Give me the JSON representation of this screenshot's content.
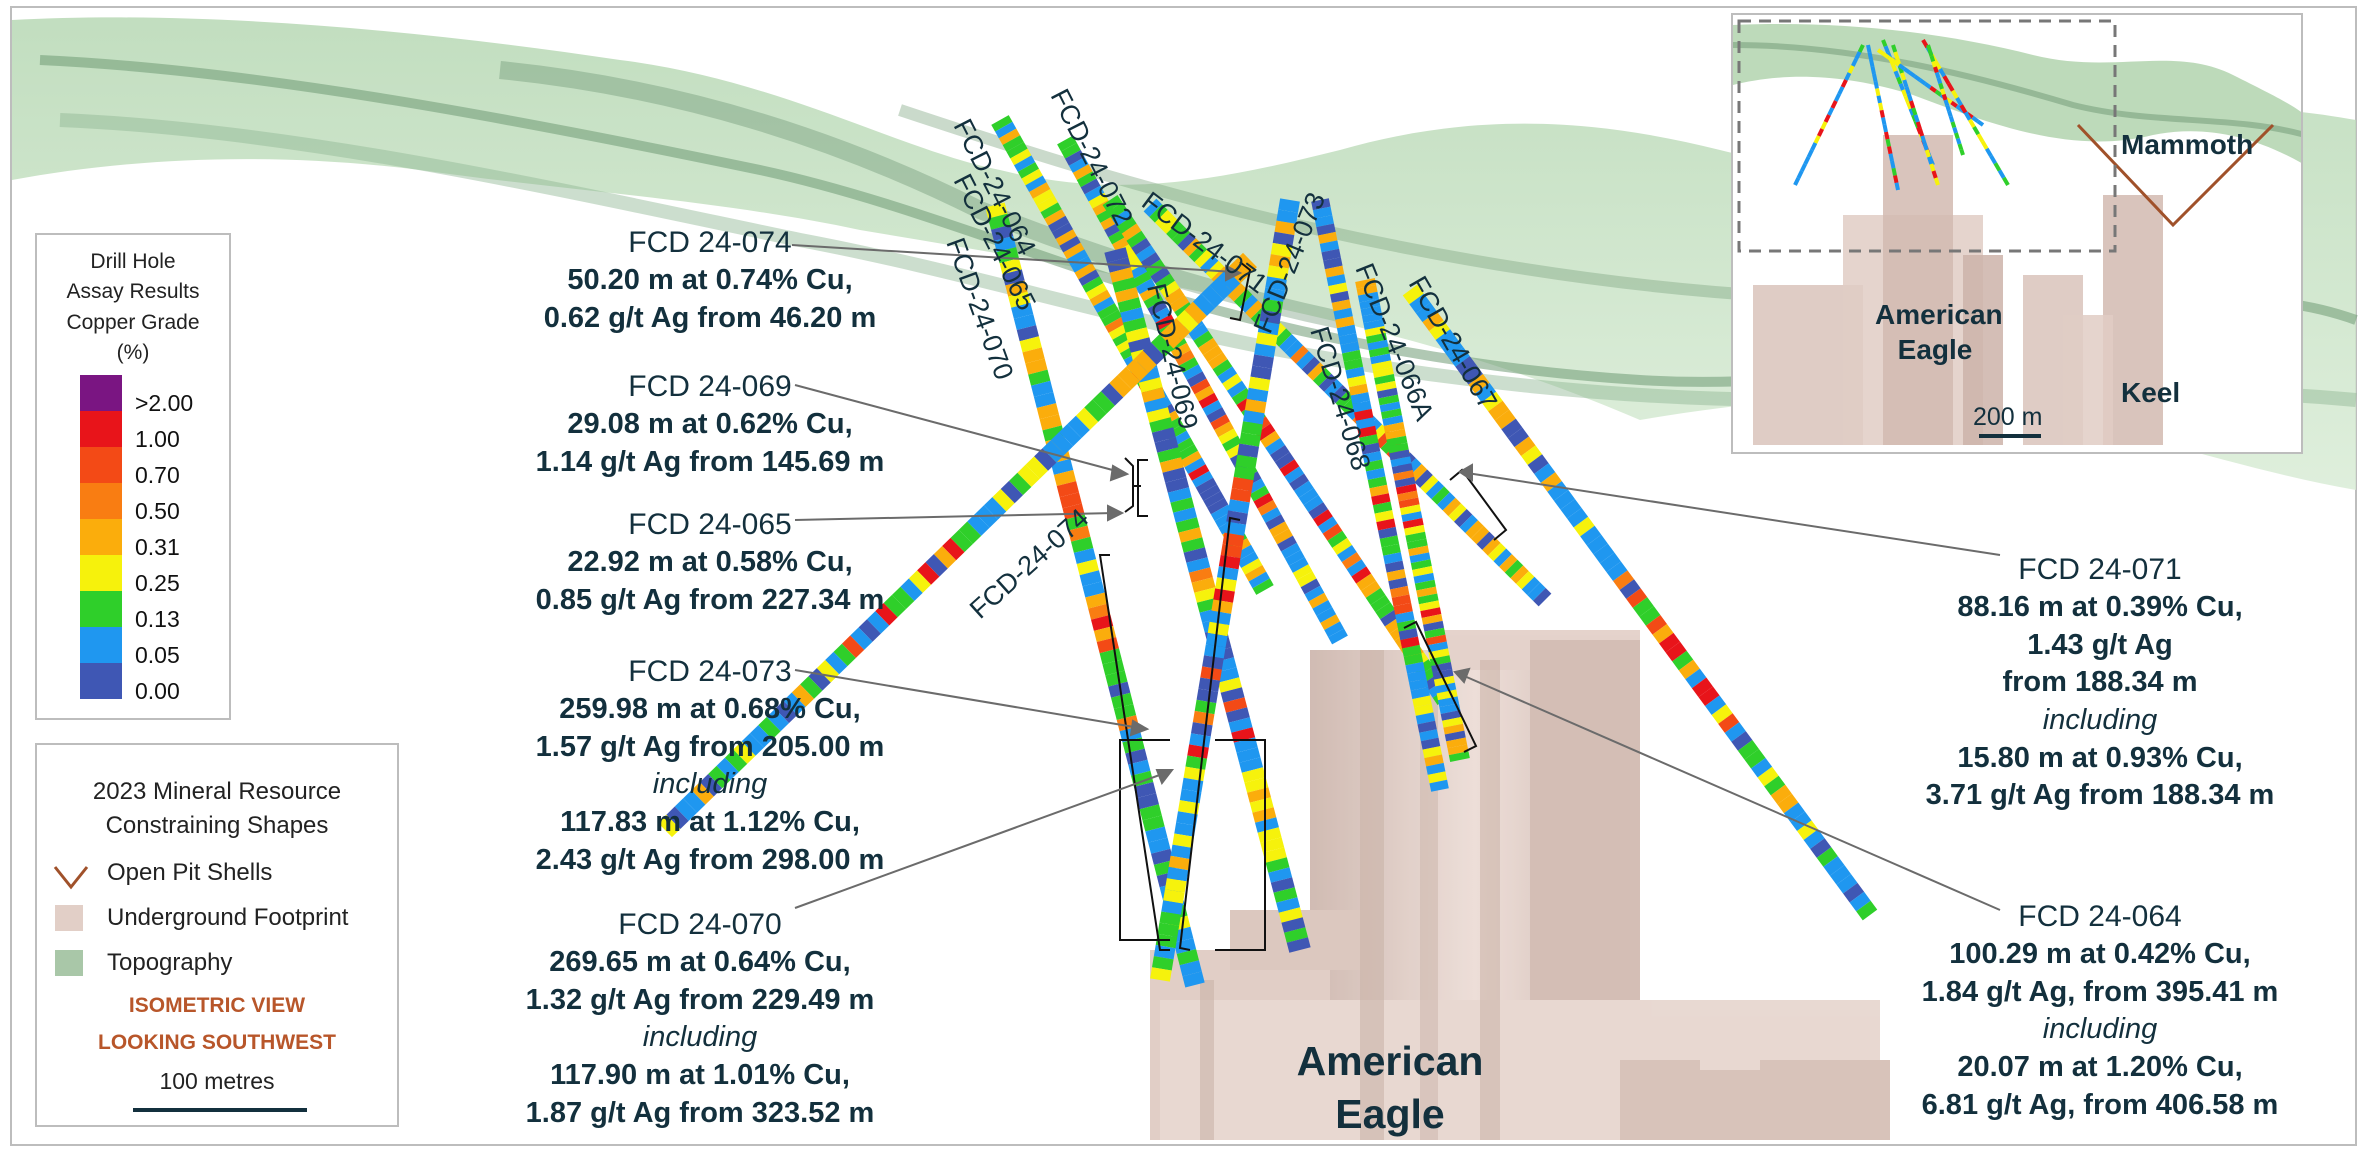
{
  "colors": {
    "topography": "#a9cda8",
    "topography_dark": "#6f9a74",
    "underground": "#d9c3bb",
    "pit_shell": "#a0512a",
    "grade_scale": [
      "#7a1582",
      "#e8141a",
      "#f34a16",
      "#f97d12",
      "#fbad0c",
      "#f6f20c",
      "#2fcf2a",
      "#1f97f0",
      "#3f57b4"
    ]
  },
  "legend_grade": {
    "title_lines": [
      "Drill Hole",
      "Assay Results",
      "Copper Grade",
      "(%)"
    ],
    "labels": [
      ">2.00",
      "1.00",
      "0.70",
      "0.50",
      "0.31",
      "0.25",
      "0.13",
      "0.05",
      "0.00"
    ]
  },
  "legend_resource": {
    "title_lines": [
      "2023 Mineral Resource",
      "Constraining Shapes"
    ],
    "items": [
      {
        "label": "Open Pit Shells",
        "icon": "pit-shell-icon"
      },
      {
        "label": "Underground Footprint",
        "icon": "underground-swatch-icon"
      },
      {
        "label": "Topography",
        "icon": "topography-swatch-icon"
      }
    ],
    "view_lines": [
      "ISOMETRIC VIEW",
      "LOOKING SOUTHWEST"
    ],
    "scale_label": "100 metres"
  },
  "holes": [
    {
      "id": "FCD-24-064",
      "label": "FCD-24-064"
    },
    {
      "id": "FCD-24-065",
      "label": "FCD-24-065"
    },
    {
      "id": "FCD-24-066A",
      "label": "FCD-24-066A"
    },
    {
      "id": "FCD-24-067",
      "label": "FCD-24-067"
    },
    {
      "id": "FCD-24-068",
      "label": "FCD-24-068"
    },
    {
      "id": "FCD-24-069",
      "label": "FCD-24-069"
    },
    {
      "id": "FCD-24-070",
      "label": "FCD-24-070"
    },
    {
      "id": "FCD-24-071",
      "label": "FCD-24-071"
    },
    {
      "id": "FCD-24-072",
      "label": "FCD-24-072"
    },
    {
      "id": "FCD-24-073",
      "label": "FCD-24-073"
    },
    {
      "id": "FCD-24-074",
      "label": "FCD-24-074"
    }
  ],
  "intercepts": {
    "h074": {
      "title": "FCD 24-074",
      "lines": [
        "50.20 m at 0.74% Cu,",
        "0.62 g/t Ag from 46.20 m"
      ]
    },
    "h069": {
      "title": "FCD 24-069",
      "lines": [
        "29.08 m at 0.62% Cu,",
        "1.14 g/t Ag from 145.69 m"
      ]
    },
    "h065": {
      "title": "FCD 24-065",
      "lines": [
        "22.92 m at 0.58% Cu,",
        "0.85 g/t Ag from 227.34 m"
      ]
    },
    "h073": {
      "title": "FCD 24-073",
      "lines": [
        "259.98 m at 0.68% Cu,",
        "1.57 g/t Ag from 205.00 m"
      ],
      "including": "including",
      "incl_lines": [
        "117.83 m at 1.12% Cu,",
        "2.43 g/t Ag from 298.00 m"
      ]
    },
    "h070": {
      "title": "FCD 24-070",
      "lines": [
        "269.65 m at 0.64% Cu,",
        "1.32 g/t Ag from 229.49 m"
      ],
      "including": "including",
      "incl_lines": [
        "117.90 m at 1.01% Cu,",
        "1.87 g/t Ag from 323.52 m"
      ]
    },
    "h071": {
      "title": "FCD 24-071",
      "lines": [
        "88.16 m at 0.39% Cu,",
        "1.43 g/t Ag",
        "from 188.34 m"
      ],
      "including": "including",
      "incl_lines": [
        "15.80 m at 0.93% Cu,",
        "3.71 g/t Ag from 188.34 m"
      ]
    },
    "h064": {
      "title": "FCD 24-064",
      "lines": [
        "100.29 m at 0.42% Cu,",
        "1.84 g/t Ag, from 395.41 m"
      ],
      "including": "including",
      "incl_lines": [
        "20.07 m at 1.20% Cu,",
        "6.81 g/t Ag, from 406.58 m"
      ]
    }
  },
  "deposit_label": [
    "American",
    "Eagle"
  ],
  "inset": {
    "mammoth": "Mammoth",
    "american_eagle": [
      "American",
      "Eagle"
    ],
    "keel": "Keel",
    "scale_label": "200 m"
  }
}
